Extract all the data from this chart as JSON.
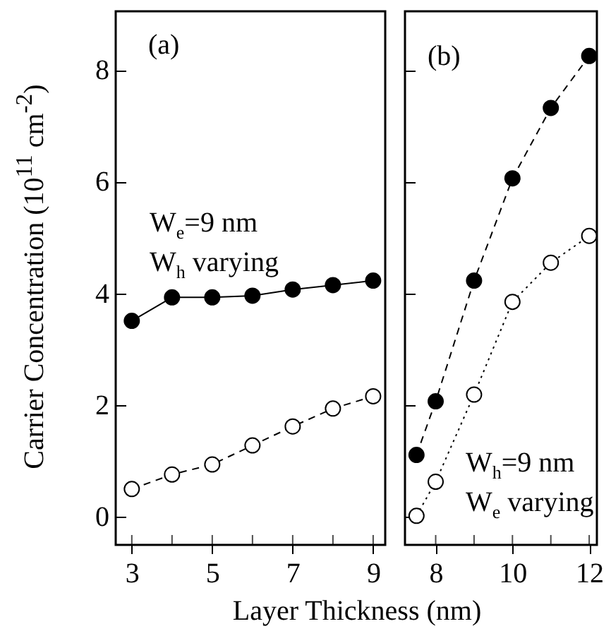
{
  "chart_data": [
    {
      "type": "line",
      "ylabel": "Carrier Concentration (10$^{11}$ cm$^{-2}$)",
      "xlabel": "Layer Thickness  (nm)",
      "annotations": [
        "(a)",
        "W$_{e}$=9 nm",
        "W$_{h}$ varying"
      ],
      "x": [
        3,
        4,
        5,
        6,
        7,
        8,
        9
      ],
      "xlim": [
        2.6,
        9.3
      ],
      "xticks": [
        3,
        {
          "value": 4,
          "label": null
        },
        5,
        {
          "value": 6,
          "label": null
        },
        7,
        {
          "value": 8,
          "label": null
        },
        9
      ],
      "ylim": [
        -0.5,
        9.05
      ],
      "yticks": [
        0,
        2,
        4,
        6,
        8
      ],
      "marker": "circle",
      "series": [
        {
          "color": "#000000",
          "line_style": "solid",
          "values": [
            3.51,
            3.93,
            3.93,
            3.96,
            4.07,
            4.15,
            4.23
          ]
        },
        {
          "color": "#000000",
          "line_style": "dashed",
          "values": [
            0.5,
            0.76,
            0.94,
            1.28,
            1.62,
            1.94,
            2.16
          ]
        }
      ]
    },
    {
      "type": "line",
      "annotations": [
        "(b)",
        "W$_{h}$=9 nm",
        "W$_{e}$ varying"
      ],
      "x": [
        7.5,
        8,
        9,
        10,
        11,
        12
      ],
      "xlim": [
        7.2,
        12.2
      ],
      "xticks": [
        8,
        {
          "value": 9,
          "label": null
        },
        10,
        {
          "value": 11,
          "label": null
        },
        12
      ],
      "ylim": [
        -0.5,
        9.05
      ],
      "yticks": [
        0,
        2,
        4,
        6,
        8
      ],
      "tick_labels": "x",
      "marker": "circle",
      "series": [
        {
          "color": "#000000",
          "line_style": "dashed",
          "values": [
            1.11,
            2.07,
            4.23,
            6.06,
            7.32,
            8.25
          ]
        },
        {
          "color": "#000000",
          "line_style": "dotted",
          "values": [
            0.02,
            0.63,
            2.19,
            3.85,
            4.55,
            5.03
          ]
        }
      ]
    }
  ]
}
